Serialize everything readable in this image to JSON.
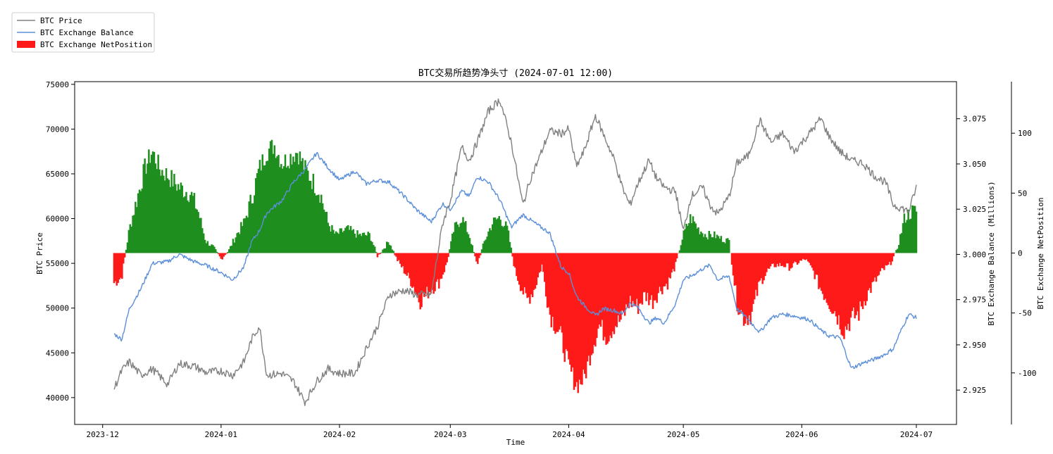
{
  "chart_data": {
    "type": "line",
    "title": "BTC交易所趋势净头寸 (2024-07-01 12:00)",
    "xlabel": "Time",
    "x_range": [
      "2023-12-04",
      "2024-07-01"
    ],
    "x_ticks": [
      {
        "date": "2023-12-01",
        "label": "2023-12"
      },
      {
        "date": "2024-01-01",
        "label": "2024-01"
      },
      {
        "date": "2024-02-01",
        "label": "2024-02"
      },
      {
        "date": "2024-03-01",
        "label": "2024-03"
      },
      {
        "date": "2024-04-01",
        "label": "2024-04"
      },
      {
        "date": "2024-05-01",
        "label": "2024-05"
      },
      {
        "date": "2024-06-01",
        "label": "2024-06"
      },
      {
        "date": "2024-07-01",
        "label": "2024-07"
      }
    ],
    "legend": {
      "placement": "top-left",
      "entries": [
        "BTC Price",
        "BTC Exchange Balance",
        "BTC Exchange NetPosition"
      ]
    },
    "grid": false,
    "axes": {
      "price": {
        "label": "BTC Price",
        "ylim": [
          37000,
          75300
        ],
        "ticks": [
          "40000",
          "45000",
          "50000",
          "55000",
          "60000",
          "65000",
          "70000",
          "75000"
        ]
      },
      "balance": {
        "label": "BTC Exchange Balance (Millions)",
        "ylim": [
          2.906,
          3.0955
        ],
        "ticks": [
          "2.925",
          "2.950",
          "2.975",
          "3.000",
          "3.025",
          "3.050",
          "3.075"
        ]
      },
      "netposition": {
        "label": "BTC Exchange NetPosition",
        "ylim": [
          -143,
          143
        ],
        "ticks": [
          "-100",
          "-50",
          "0",
          "50",
          "100"
        ]
      }
    },
    "series": [
      {
        "name": "BTC Price",
        "color": "#808080",
        "axis": "price",
        "points": [
          [
            "2023-12-04",
            41000
          ],
          [
            "2023-12-06",
            43000
          ],
          [
            "2023-12-08",
            44000
          ],
          [
            "2023-12-11",
            42500
          ],
          [
            "2023-12-14",
            43200
          ],
          [
            "2023-12-18",
            41500
          ],
          [
            "2023-12-21",
            43800
          ],
          [
            "2023-12-25",
            43500
          ],
          [
            "2023-12-28",
            42800
          ],
          [
            "2024-01-01",
            43000
          ],
          [
            "2024-01-04",
            42500
          ],
          [
            "2024-01-07",
            44000
          ],
          [
            "2024-01-09",
            46500
          ],
          [
            "2024-01-11",
            48000
          ],
          [
            "2024-01-13",
            42500
          ],
          [
            "2024-01-17",
            42700
          ],
          [
            "2024-01-20",
            41800
          ],
          [
            "2024-01-23",
            39500
          ],
          [
            "2024-01-26",
            41800
          ],
          [
            "2024-01-29",
            43200
          ],
          [
            "2024-02-01",
            42700
          ],
          [
            "2024-02-05",
            42700
          ],
          [
            "2024-02-08",
            45500
          ],
          [
            "2024-02-11",
            48000
          ],
          [
            "2024-02-14",
            51500
          ],
          [
            "2024-02-18",
            52000
          ],
          [
            "2024-02-21",
            51500
          ],
          [
            "2024-02-25",
            51500
          ],
          [
            "2024-02-28",
            59500
          ],
          [
            "2024-03-01",
            62000
          ],
          [
            "2024-03-04",
            68000
          ],
          [
            "2024-03-06",
            66500
          ],
          [
            "2024-03-08",
            68500
          ],
          [
            "2024-03-11",
            72000
          ],
          [
            "2024-03-14",
            73300
          ],
          [
            "2024-03-17",
            68500
          ],
          [
            "2024-03-20",
            61500
          ],
          [
            "2024-03-22",
            64500
          ],
          [
            "2024-03-24",
            66500
          ],
          [
            "2024-03-27",
            69800
          ],
          [
            "2024-03-30",
            69500
          ],
          [
            "2024-04-01",
            70000
          ],
          [
            "2024-04-03",
            65800
          ],
          [
            "2024-04-05",
            67500
          ],
          [
            "2024-04-08",
            71500
          ],
          [
            "2024-04-10",
            69500
          ],
          [
            "2024-04-13",
            66500
          ],
          [
            "2024-04-15",
            63500
          ],
          [
            "2024-04-17",
            61500
          ],
          [
            "2024-04-19",
            63800
          ],
          [
            "2024-04-22",
            66500
          ],
          [
            "2024-04-24",
            64500
          ],
          [
            "2024-04-26",
            63500
          ],
          [
            "2024-04-29",
            63000
          ],
          [
            "2024-05-01",
            58500
          ],
          [
            "2024-05-03",
            62500
          ],
          [
            "2024-05-06",
            63500
          ],
          [
            "2024-05-08",
            61500
          ],
          [
            "2024-05-10",
            60500
          ],
          [
            "2024-05-13",
            62500
          ],
          [
            "2024-05-15",
            66200
          ],
          [
            "2024-05-18",
            67000
          ],
          [
            "2024-05-21",
            71000
          ],
          [
            "2024-05-24",
            68500
          ],
          [
            "2024-05-27",
            69500
          ],
          [
            "2024-05-30",
            67500
          ],
          [
            "2024-06-03",
            69500
          ],
          [
            "2024-06-06",
            71200
          ],
          [
            "2024-06-08",
            69300
          ],
          [
            "2024-06-11",
            67500
          ],
          [
            "2024-06-14",
            66500
          ],
          [
            "2024-06-17",
            66200
          ],
          [
            "2024-06-20",
            64800
          ],
          [
            "2024-06-23",
            64000
          ],
          [
            "2024-06-25",
            61500
          ],
          [
            "2024-06-27",
            61200
          ],
          [
            "2024-06-29",
            60800
          ],
          [
            "2024-07-01",
            63500
          ]
        ]
      },
      {
        "name": "BTC Exchange Balance",
        "color": "#5b8fd9",
        "axis": "balance",
        "points": [
          [
            "2023-12-04",
            2.956
          ],
          [
            "2023-12-06",
            2.953
          ],
          [
            "2023-12-08",
            2.97
          ],
          [
            "2023-12-11",
            2.981
          ],
          [
            "2023-12-14",
            2.995
          ],
          [
            "2023-12-18",
            2.996
          ],
          [
            "2023-12-21",
            3.0
          ],
          [
            "2023-12-25",
            2.996
          ],
          [
            "2023-12-28",
            2.994
          ],
          [
            "2024-01-01",
            2.99
          ],
          [
            "2024-01-04",
            2.986
          ],
          [
            "2024-01-07",
            2.993
          ],
          [
            "2024-01-09",
            3.007
          ],
          [
            "2024-01-11",
            3.013
          ],
          [
            "2024-01-13",
            3.023
          ],
          [
            "2024-01-17",
            3.03
          ],
          [
            "2024-01-20",
            3.04
          ],
          [
            "2024-01-23",
            3.047
          ],
          [
            "2024-01-26",
            3.056
          ],
          [
            "2024-01-29",
            3.048
          ],
          [
            "2024-02-01",
            3.041
          ],
          [
            "2024-02-05",
            3.046
          ],
          [
            "2024-02-08",
            3.039
          ],
          [
            "2024-02-11",
            3.041
          ],
          [
            "2024-02-14",
            3.04
          ],
          [
            "2024-02-18",
            3.032
          ],
          [
            "2024-02-21",
            3.025
          ],
          [
            "2024-02-25",
            3.018
          ],
          [
            "2024-02-28",
            3.028
          ],
          [
            "2024-03-01",
            3.025
          ],
          [
            "2024-03-04",
            3.035
          ],
          [
            "2024-03-06",
            3.032
          ],
          [
            "2024-03-08",
            3.043
          ],
          [
            "2024-03-11",
            3.04
          ],
          [
            "2024-03-14",
            3.03
          ],
          [
            "2024-03-17",
            3.015
          ],
          [
            "2024-03-20",
            3.022
          ],
          [
            "2024-03-22",
            3.019
          ],
          [
            "2024-03-24",
            3.016
          ],
          [
            "2024-03-27",
            3.012
          ],
          [
            "2024-03-30",
            2.993
          ],
          [
            "2024-04-01",
            2.99
          ],
          [
            "2024-04-03",
            2.977
          ],
          [
            "2024-04-05",
            2.972
          ],
          [
            "2024-04-08",
            2.966
          ],
          [
            "2024-04-10",
            2.97
          ],
          [
            "2024-04-13",
            2.969
          ],
          [
            "2024-04-15",
            2.967
          ],
          [
            "2024-04-17",
            2.973
          ],
          [
            "2024-04-19",
            2.971
          ],
          [
            "2024-04-22",
            2.962
          ],
          [
            "2024-04-24",
            2.965
          ],
          [
            "2024-04-26",
            2.962
          ],
          [
            "2024-04-29",
            2.973
          ],
          [
            "2024-05-01",
            2.986
          ],
          [
            "2024-05-03",
            2.988
          ],
          [
            "2024-05-06",
            2.992
          ],
          [
            "2024-05-08",
            2.994
          ],
          [
            "2024-05-10",
            2.986
          ],
          [
            "2024-05-13",
            2.988
          ],
          [
            "2024-05-15",
            2.97
          ],
          [
            "2024-05-18",
            2.964
          ],
          [
            "2024-05-21",
            2.957
          ],
          [
            "2024-05-24",
            2.965
          ],
          [
            "2024-05-27",
            2.967
          ],
          [
            "2024-05-30",
            2.966
          ],
          [
            "2024-06-03",
            2.964
          ],
          [
            "2024-06-06",
            2.958
          ],
          [
            "2024-06-08",
            2.955
          ],
          [
            "2024-06-11",
            2.954
          ],
          [
            "2024-06-14",
            2.937
          ],
          [
            "2024-06-17",
            2.94
          ],
          [
            "2024-06-20",
            2.942
          ],
          [
            "2024-06-23",
            2.945
          ],
          [
            "2024-06-25",
            2.948
          ],
          [
            "2024-06-27",
            2.958
          ],
          [
            "2024-06-29",
            2.967
          ],
          [
            "2024-07-01",
            2.965
          ]
        ]
      },
      {
        "name": "BTC Exchange NetPosition",
        "color_positive": "#1e8f1e",
        "color_negative": "#ff1a1a",
        "axis": "netposition",
        "points": [
          [
            "2023-12-04",
            -25
          ],
          [
            "2023-12-06",
            -20
          ],
          [
            "2023-12-08",
            20
          ],
          [
            "2023-12-10",
            45
          ],
          [
            "2023-12-12",
            70
          ],
          [
            "2023-12-14",
            85
          ],
          [
            "2023-12-16",
            70
          ],
          [
            "2023-12-18",
            65
          ],
          [
            "2023-12-21",
            55
          ],
          [
            "2023-12-24",
            50
          ],
          [
            "2023-12-26",
            35
          ],
          [
            "2023-12-28",
            10
          ],
          [
            "2023-12-30",
            5
          ],
          [
            "2024-01-01",
            -5
          ],
          [
            "2024-01-03",
            2
          ],
          [
            "2024-01-05",
            15
          ],
          [
            "2024-01-07",
            25
          ],
          [
            "2024-01-09",
            45
          ],
          [
            "2024-01-11",
            70
          ],
          [
            "2024-01-13",
            85
          ],
          [
            "2024-01-15",
            90
          ],
          [
            "2024-01-17",
            75
          ],
          [
            "2024-01-19",
            80
          ],
          [
            "2024-01-21",
            85
          ],
          [
            "2024-01-23",
            70
          ],
          [
            "2024-01-25",
            60
          ],
          [
            "2024-01-27",
            50
          ],
          [
            "2024-01-29",
            25
          ],
          [
            "2024-01-31",
            15
          ],
          [
            "2024-02-03",
            20
          ],
          [
            "2024-02-06",
            15
          ],
          [
            "2024-02-09",
            15
          ],
          [
            "2024-02-11",
            -3
          ],
          [
            "2024-02-14",
            10
          ],
          [
            "2024-02-16",
            -5
          ],
          [
            "2024-02-18",
            -15
          ],
          [
            "2024-02-20",
            -25
          ],
          [
            "2024-02-22",
            -40
          ],
          [
            "2024-02-25",
            -30
          ],
          [
            "2024-02-27",
            -25
          ],
          [
            "2024-02-29",
            -10
          ],
          [
            "2024-03-02",
            20
          ],
          [
            "2024-03-04",
            30
          ],
          [
            "2024-03-06",
            15
          ],
          [
            "2024-03-08",
            -10
          ],
          [
            "2024-03-10",
            10
          ],
          [
            "2024-03-12",
            25
          ],
          [
            "2024-03-14",
            30
          ],
          [
            "2024-03-16",
            20
          ],
          [
            "2024-03-18",
            -15
          ],
          [
            "2024-03-21",
            -40
          ],
          [
            "2024-03-23",
            -30
          ],
          [
            "2024-03-25",
            -10
          ],
          [
            "2024-03-27",
            -50
          ],
          [
            "2024-03-30",
            -70
          ],
          [
            "2024-04-01",
            -95
          ],
          [
            "2024-04-03",
            -110
          ],
          [
            "2024-04-05",
            -105
          ],
          [
            "2024-04-07",
            -80
          ],
          [
            "2024-04-09",
            -60
          ],
          [
            "2024-04-11",
            -70
          ],
          [
            "2024-04-13",
            -60
          ],
          [
            "2024-04-15",
            -55
          ],
          [
            "2024-04-17",
            -40
          ],
          [
            "2024-04-19",
            -45
          ],
          [
            "2024-04-21",
            -35
          ],
          [
            "2024-04-23",
            -40
          ],
          [
            "2024-04-25",
            -30
          ],
          [
            "2024-04-27",
            -25
          ],
          [
            "2024-04-29",
            -10
          ],
          [
            "2024-05-01",
            15
          ],
          [
            "2024-05-03",
            30
          ],
          [
            "2024-05-05",
            20
          ],
          [
            "2024-05-07",
            15
          ],
          [
            "2024-05-09",
            15
          ],
          [
            "2024-05-11",
            12
          ],
          [
            "2024-05-13",
            10
          ],
          [
            "2024-05-15",
            -40
          ],
          [
            "2024-05-17",
            -55
          ],
          [
            "2024-05-19",
            -50
          ],
          [
            "2024-05-21",
            -25
          ],
          [
            "2024-05-23",
            -15
          ],
          [
            "2024-05-25",
            -10
          ],
          [
            "2024-05-27",
            -10
          ],
          [
            "2024-05-29",
            -12
          ],
          [
            "2024-05-31",
            -8
          ],
          [
            "2024-06-02",
            -5
          ],
          [
            "2024-06-04",
            -15
          ],
          [
            "2024-06-06",
            -30
          ],
          [
            "2024-06-08",
            -40
          ],
          [
            "2024-06-10",
            -50
          ],
          [
            "2024-06-12",
            -65
          ],
          [
            "2024-06-14",
            -55
          ],
          [
            "2024-06-16",
            -50
          ],
          [
            "2024-06-18",
            -35
          ],
          [
            "2024-06-20",
            -25
          ],
          [
            "2024-06-22",
            -15
          ],
          [
            "2024-06-24",
            -10
          ],
          [
            "2024-06-26",
            3
          ],
          [
            "2024-06-28",
            30
          ],
          [
            "2024-06-30",
            35
          ],
          [
            "2024-07-01",
            35
          ]
        ]
      }
    ]
  }
}
